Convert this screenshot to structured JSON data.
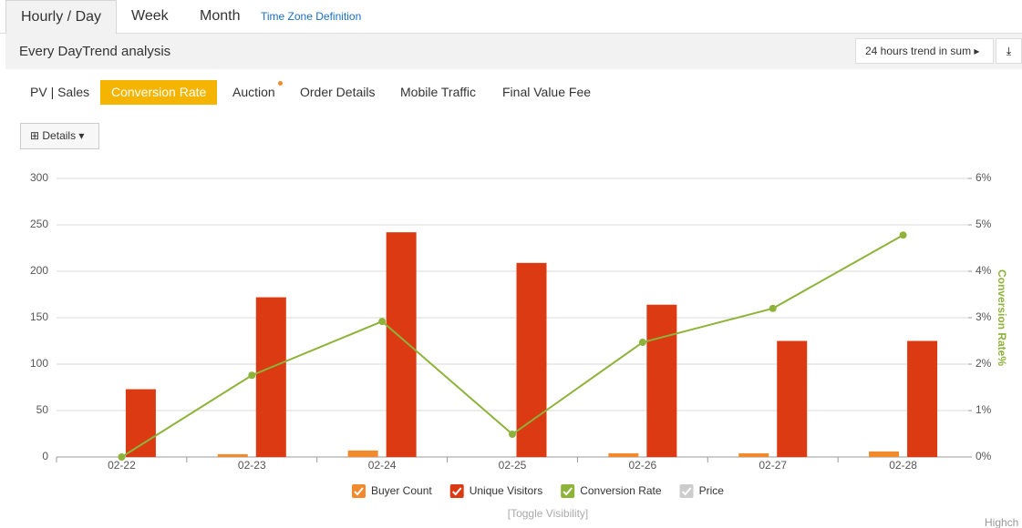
{
  "tabs": [
    "Hourly / Day",
    "Week",
    "Month"
  ],
  "tab_link": "Time Zone Definition",
  "header": {
    "title": "Every DayTrend analysis",
    "dropdown": "24 hours trend in sum"
  },
  "subtabs": [
    "PV | Sales",
    "Conversion Rate",
    "Auction",
    "Order Details",
    "Mobile Traffic",
    "Final Value Fee"
  ],
  "details_button": "Details",
  "toggle_link": "[Toggle Visibility]",
  "credit": "Highch",
  "chart_data": {
    "type": "bar",
    "categories": [
      "02-22",
      "02-23",
      "02-24",
      "02-25",
      "02-26",
      "02-27",
      "02-28"
    ],
    "series": [
      {
        "name": "Buyer Count",
        "color": "#f08a2c",
        "type": "bar",
        "values": [
          0,
          3,
          7,
          0,
          4,
          4,
          6
        ]
      },
      {
        "name": "Unique Visitors",
        "color": "#db3a12",
        "type": "bar",
        "values": [
          73,
          172,
          242,
          209,
          164,
          125,
          125
        ]
      },
      {
        "name": "Conversion Rate",
        "color": "#8db33a",
        "type": "line",
        "axis": "y2",
        "values": [
          0,
          1.76,
          2.92,
          0.49,
          2.47,
          3.2,
          4.78
        ]
      },
      {
        "name": "Price",
        "color": "#cccccc",
        "type": "line",
        "values": [
          null,
          null,
          null,
          null,
          null,
          null,
          null
        ]
      }
    ],
    "ylim": [
      0,
      300
    ],
    "yticks": [
      0,
      50,
      100,
      150,
      200,
      250,
      300
    ],
    "y2lim": [
      0,
      6
    ],
    "y2ticks": [
      {
        "value": 0,
        "label": "0%"
      },
      {
        "value": 1,
        "label": "1%"
      },
      {
        "value": 2,
        "label": "2%"
      },
      {
        "value": 3,
        "label": "3%"
      },
      {
        "value": 4,
        "label": "4%"
      },
      {
        "value": 5,
        "label": "5%"
      },
      {
        "value": 6,
        "label": "6%"
      }
    ],
    "y2label": "Conversion Rate%",
    "grid": true
  }
}
